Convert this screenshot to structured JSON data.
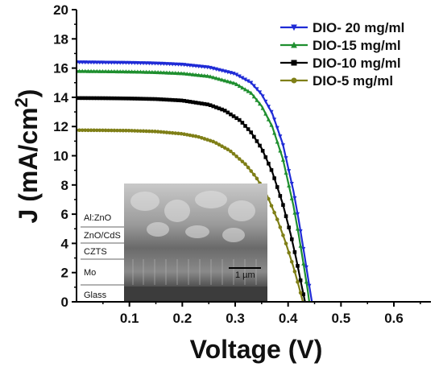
{
  "chart_data": {
    "type": "line",
    "xlabel": "Voltage (V)",
    "ylabel_main": "J (mA/cm",
    "ylabel_sup": "2",
    "ylabel_close": ")",
    "xlim": [
      0.0,
      0.67
    ],
    "ylim": [
      0,
      20
    ],
    "x_ticks": [
      0.1,
      0.2,
      0.3,
      0.4,
      0.5,
      0.6
    ],
    "x_tick_labels": [
      "0.1",
      "0.2",
      "0.3",
      "0.4",
      "0.5",
      "0.6"
    ],
    "y_ticks": [
      0,
      2,
      4,
      6,
      8,
      10,
      12,
      14,
      16,
      18,
      20
    ],
    "y_tick_labels": [
      "0",
      "2",
      "4",
      "6",
      "8",
      "10",
      "12",
      "14",
      "16",
      "18",
      "20"
    ],
    "grid": false,
    "legend_position": "top-right",
    "series": [
      {
        "name": "DIO- 20 mg/ml",
        "color": "#1f2bd6",
        "marker": "triangle-down",
        "x": [
          0.0,
          0.05,
          0.1,
          0.15,
          0.2,
          0.25,
          0.3,
          0.33,
          0.35,
          0.37,
          0.39,
          0.41,
          0.42,
          0.43,
          0.44,
          0.445
        ],
        "y": [
          16.4,
          16.38,
          16.36,
          16.32,
          16.24,
          16.05,
          15.6,
          15.0,
          14.2,
          12.9,
          10.8,
          7.6,
          5.6,
          3.4,
          1.1,
          0.0
        ]
      },
      {
        "name": "DIO-15 mg/ml",
        "color": "#1f8f2f",
        "marker": "triangle-up",
        "x": [
          0.0,
          0.05,
          0.1,
          0.15,
          0.2,
          0.25,
          0.3,
          0.33,
          0.35,
          0.37,
          0.39,
          0.41,
          0.42,
          0.43,
          0.437,
          0.44
        ],
        "y": [
          15.8,
          15.78,
          15.76,
          15.72,
          15.64,
          15.45,
          14.95,
          14.3,
          13.4,
          12.0,
          9.8,
          6.6,
          4.6,
          2.4,
          0.8,
          0.0
        ]
      },
      {
        "name": "DIO-10 mg/ml",
        "color": "#000000",
        "marker": "square",
        "x": [
          0.0,
          0.05,
          0.1,
          0.15,
          0.2,
          0.25,
          0.28,
          0.31,
          0.33,
          0.35,
          0.37,
          0.39,
          0.405,
          0.415,
          0.425,
          0.432
        ],
        "y": [
          13.95,
          13.94,
          13.92,
          13.88,
          13.78,
          13.5,
          13.1,
          12.4,
          11.6,
          10.5,
          8.9,
          6.7,
          4.6,
          3.0,
          1.2,
          0.0
        ]
      },
      {
        "name": "DIO-5 mg/ml",
        "color": "#7f7f17",
        "marker": "circle",
        "x": [
          0.0,
          0.05,
          0.1,
          0.15,
          0.2,
          0.23,
          0.26,
          0.29,
          0.32,
          0.34,
          0.36,
          0.38,
          0.395,
          0.41,
          0.42,
          0.428
        ],
        "y": [
          11.75,
          11.74,
          11.72,
          11.66,
          11.5,
          11.3,
          10.95,
          10.35,
          9.4,
          8.5,
          7.3,
          5.6,
          4.1,
          2.4,
          1.1,
          0.0
        ]
      }
    ]
  },
  "inset": {
    "layers": [
      "Al:ZnO",
      "ZnO/CdS",
      "CZTS",
      "Mo",
      "Glass"
    ],
    "scale_bar_label": "1 µm"
  }
}
